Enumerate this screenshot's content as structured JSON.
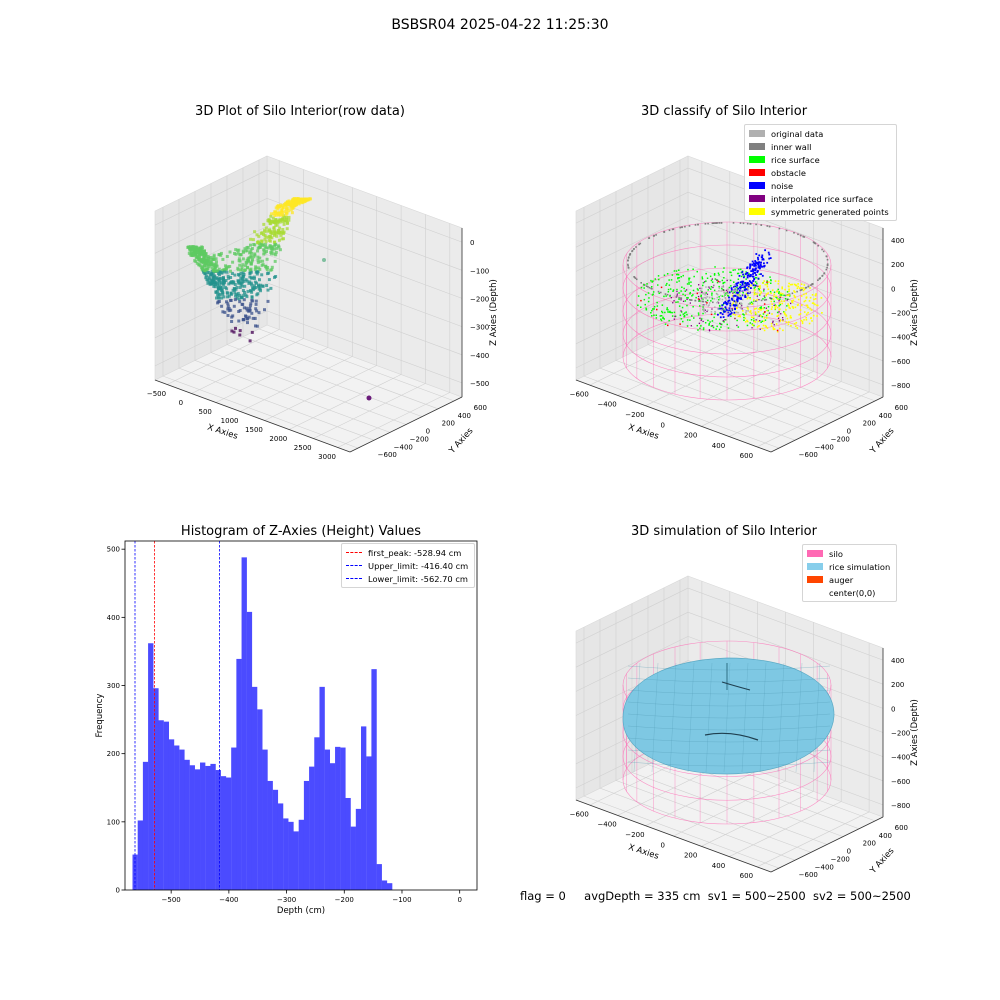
{
  "suptitle": "BSBSR04 2025-04-22 11:25:30",
  "status_line": {
    "flag": "flag = 0",
    "avg_depth": "avgDepth = 335 cm",
    "sv1": "sv1 = 500~2500",
    "sv2": "sv2 = 500~2500"
  },
  "colors": {
    "histogram_bar": "#4b4bff",
    "first_peak_line": "#ff0000",
    "limit_lines": "#0000ff",
    "silo_wireframe": "#ff69b4",
    "rice_simulation": "#7ec8e3"
  },
  "plot_raw": {
    "title": "3D Plot of Silo Interior(row data)",
    "xlabel": "X Axies",
    "ylabel": "Y Axies",
    "zlabel": "Z Axies (Depth)",
    "xticks": [
      "−500",
      "0",
      "500",
      "1000",
      "1500",
      "2000",
      "2500",
      "3000"
    ],
    "yticks": [
      "600",
      "400",
      "200",
      "0",
      "−200",
      "−400",
      "−600"
    ],
    "zticks": [
      "0",
      "−100",
      "−200",
      "−300",
      "−400",
      "−500"
    ]
  },
  "plot_classify": {
    "title": "3D classify of Silo Interior",
    "xlabel": "X Axies",
    "ylabel": "Y Axies",
    "zlabel": "Z Axies (Depth)",
    "xticks": [
      "−600",
      "−400",
      "−200",
      "0",
      "200",
      "400",
      "600"
    ],
    "yticks": [
      "600",
      "400",
      "200",
      "0",
      "−200",
      "−400",
      "−600"
    ],
    "zticks": [
      "400",
      "200",
      "0",
      "−200",
      "−400",
      "−600",
      "−800"
    ],
    "legend": [
      {
        "label": "original data",
        "color": "#b0b0b0"
      },
      {
        "label": "inner wall",
        "color": "#808080"
      },
      {
        "label": "rice surface",
        "color": "#00ff00"
      },
      {
        "label": "obstacle",
        "color": "#ff0000"
      },
      {
        "label": "noise",
        "color": "#0000ff"
      },
      {
        "label": "interpolated rice surface",
        "color": "#800080"
      },
      {
        "label": "symmetric generated points",
        "color": "#ffff00"
      }
    ]
  },
  "plot_sim": {
    "title": "3D simulation of Silo Interior",
    "xlabel": "X Axies",
    "ylabel": "Y Axies",
    "zlabel": "Z Axies (Depth)",
    "xticks": [
      "−600",
      "−400",
      "−200",
      "0",
      "200",
      "400",
      "600"
    ],
    "yticks": [
      "600",
      "400",
      "200",
      "0",
      "−200",
      "−400",
      "−600"
    ],
    "zticks": [
      "400",
      "200",
      "0",
      "−200",
      "−400",
      "−600",
      "−800"
    ],
    "legend": [
      {
        "label": "silo",
        "color": "#ff69b4"
      },
      {
        "label": "rice simulation",
        "color": "#87ceeb"
      },
      {
        "label": "auger",
        "color": "#ff4500"
      },
      {
        "label": "center(0,0)",
        "color": ""
      }
    ]
  },
  "chart_data": {
    "type": "bar",
    "title": "Histogram of Z-Axies (Height) Values",
    "xlabel": "Depth (cm)",
    "ylabel": "Frequency",
    "xlim": [
      -580,
      30
    ],
    "ylim": [
      0,
      512
    ],
    "xticks": [
      -500,
      -400,
      -300,
      -200,
      -100,
      0
    ],
    "xtick_labels": [
      "−500",
      "−400",
      "−300",
      "−200",
      "−100",
      "0"
    ],
    "yticks": [
      0,
      100,
      200,
      300,
      400,
      500
    ],
    "bin_start": -567,
    "bin_width": 9.0,
    "values": [
      52,
      102,
      188,
      362,
      296,
      249,
      247,
      221,
      212,
      206,
      191,
      183,
      177,
      187,
      182,
      185,
      176,
      167,
      165,
      209,
      339,
      488,
      408,
      298,
      265,
      206,
      160,
      147,
      127,
      105,
      100,
      86,
      103,
      160,
      181,
      224,
      298,
      206,
      186,
      210,
      209,
      135,
      93,
      119,
      240,
      196,
      324,
      38,
      14,
      10
    ],
    "vlines": [
      {
        "label": "first_peak: -528.94 cm",
        "x": -528.94,
        "color": "#ff0000"
      },
      {
        "label": "Upper_limit: -416.40 cm",
        "x": -416.4,
        "color": "#0000ff"
      },
      {
        "label": "Lower_limit: -562.70 cm",
        "x": -562.7,
        "color": "#0000ff"
      }
    ],
    "legend_position": "top-right",
    "grid": false
  }
}
